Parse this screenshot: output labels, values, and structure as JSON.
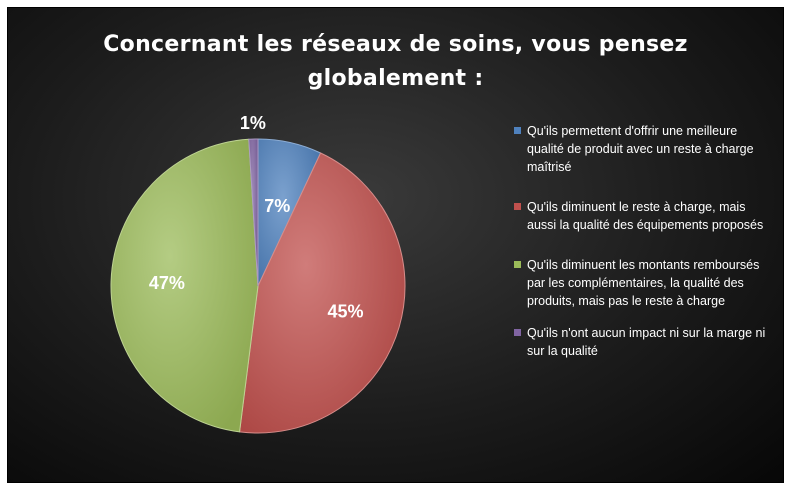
{
  "chart_data": {
    "type": "pie",
    "title_lines": [
      "Concernant les réseaux de soins, vous pensez",
      "globalement :"
    ],
    "slices": [
      {
        "label": "Qu'ils permettent d'offrir une meilleure qualité de produit avec un reste à charge maîtrisé",
        "value": 7,
        "display": "7%",
        "color": "#4f81bd"
      },
      {
        "label": "Qu'ils diminuent le reste à charge, mais aussi la qualité des équipements proposés",
        "value": 45,
        "display": "45%",
        "color": "#c0504d"
      },
      {
        "label": "Qu'ils diminuent les montants remboursés par les complémentaires, la qualité des produits, mais pas le reste à charge",
        "value": 47,
        "display": "47%",
        "color": "#9bbb59"
      },
      {
        "label": "Qu'ils n'ont aucun impact ni sur la marge ni sur la qualité",
        "value": 1,
        "display": "1%",
        "color": "#8064a2"
      }
    ],
    "legend_position": "right"
  }
}
